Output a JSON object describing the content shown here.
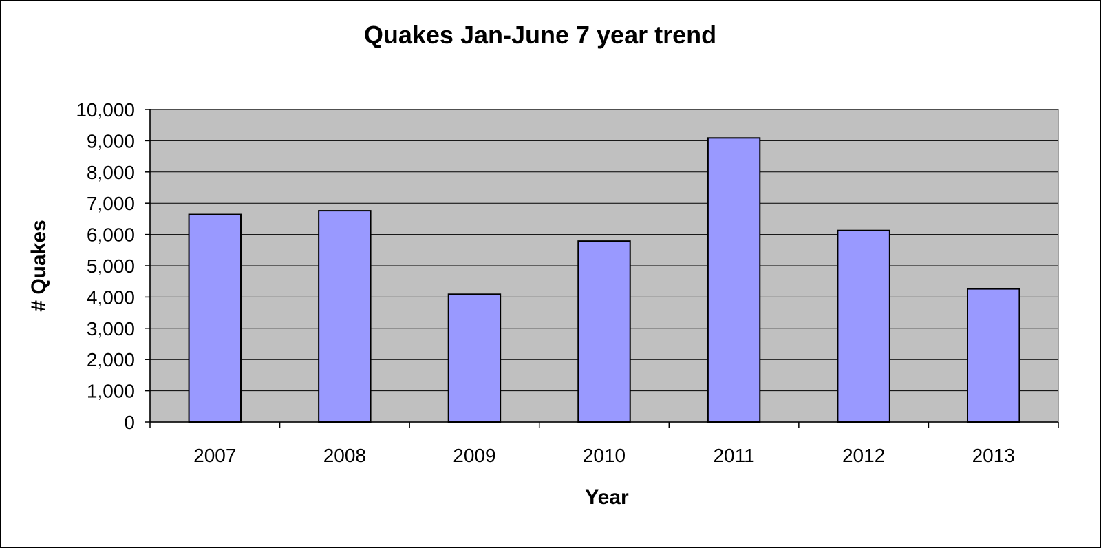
{
  "chart_data": {
    "type": "bar",
    "title": "Quakes Jan-June 7 year trend",
    "xlabel": "Year",
    "ylabel": "# Quakes",
    "categories": [
      "2007",
      "2008",
      "2009",
      "2010",
      "2011",
      "2012",
      "2013"
    ],
    "values": [
      6640,
      6760,
      4090,
      5790,
      9090,
      6130,
      4260
    ],
    "ylim": [
      0,
      10000
    ],
    "yticks": [
      0,
      1000,
      2000,
      3000,
      4000,
      5000,
      6000,
      7000,
      8000,
      9000,
      10000
    ],
    "ytick_labels": [
      "0",
      "1,000",
      "2,000",
      "3,000",
      "4,000",
      "5,000",
      "6,000",
      "7,000",
      "8,000",
      "9,000",
      "10,000"
    ],
    "grid": true,
    "legend": false,
    "colors": {
      "bar_fill": "#9999ff",
      "bar_stroke": "#000000",
      "plot_background": "#c0c0c0",
      "gridline": "#000000"
    }
  }
}
